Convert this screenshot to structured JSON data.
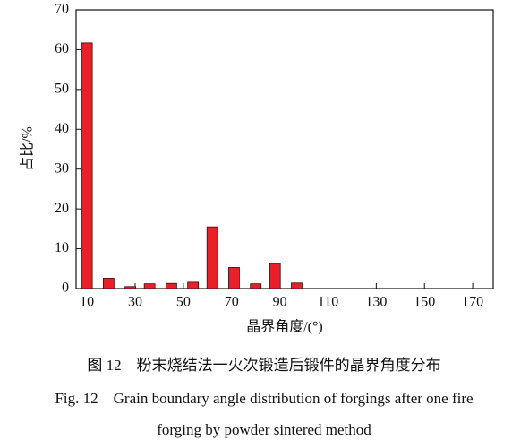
{
  "chart_data": {
    "type": "bar",
    "x_label": "晶界角度/(°)",
    "y_label": "占比/%",
    "x": [
      10,
      19,
      28,
      36,
      45,
      54,
      62,
      71,
      80,
      88,
      97
    ],
    "values": [
      61.7,
      2.6,
      0.5,
      1.2,
      1.3,
      1.6,
      15.5,
      5.3,
      1.2,
      6.3,
      1.4
    ],
    "color": "#e8202a",
    "xlim": [
      5.5,
      178.5
    ],
    "xticks": [
      10,
      30,
      50,
      70,
      90,
      110,
      130,
      150,
      170
    ],
    "ylim": [
      0,
      70
    ],
    "yticks": [
      0,
      10,
      20,
      30,
      40,
      50,
      60,
      70
    ]
  },
  "caption": [
    "图 12　粉末烧结法一火次锻造后锻件的晶界角度分布",
    "Fig. 12　Grain boundary angle distribution of forgings after one fire",
    "forging by powder sintered method"
  ]
}
